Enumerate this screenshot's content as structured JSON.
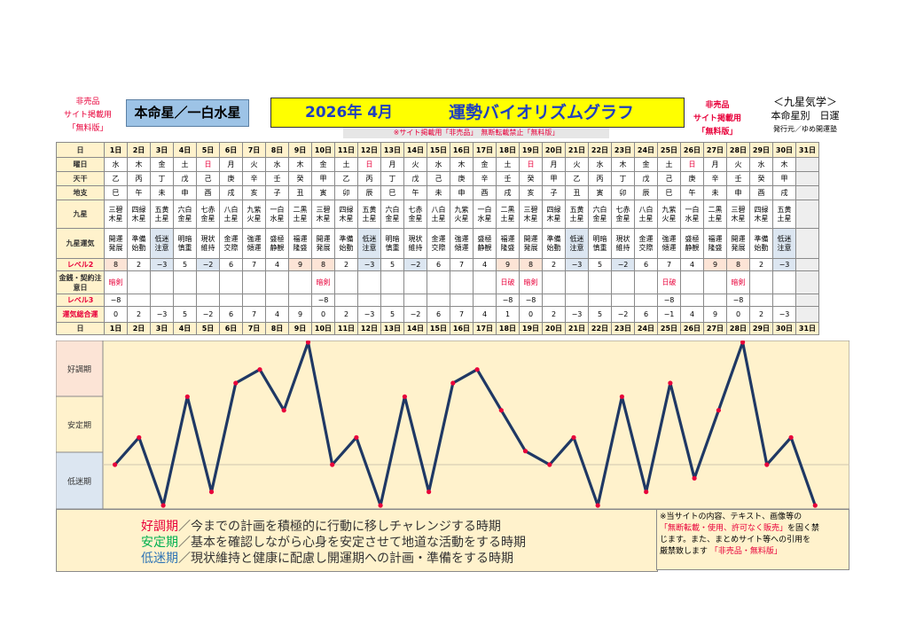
{
  "header": {
    "left_note": [
      "非売品",
      "サイト掲載用",
      "「無料版」"
    ],
    "honmei_label": "本命星／一白水星",
    "title_date": "2026年 4月",
    "title_main": "運勢バイオリズムグラフ",
    "right_note": [
      "非売品",
      "サイト掲載用",
      "「無料版」"
    ],
    "right_info": [
      "＜九星気学＞",
      "本命星別　日運",
      "発行元／ゆめ開運塾"
    ],
    "warning": "※サイト掲載用「非売品」　無断転載禁止「無料版」"
  },
  "row_labels": {
    "day": "日",
    "weekday": "曜日",
    "stem": "天干",
    "branch": "地支",
    "star": "九星",
    "fortune": "九星運気",
    "level2": "レベル2",
    "money": "金銭・契約注意日",
    "level3": "レベル3",
    "total": "運気総合運"
  },
  "days": [
    "1日",
    "2日",
    "3日",
    "4日",
    "5日",
    "6日",
    "7日",
    "8日",
    "9日",
    "10日",
    "11日",
    "12日",
    "13日",
    "14日",
    "15日",
    "16日",
    "17日",
    "18日",
    "19日",
    "20日",
    "21日",
    "22日",
    "23日",
    "24日",
    "25日",
    "26日",
    "27日",
    "28日",
    "29日",
    "30日",
    "31日"
  ],
  "weekdays": [
    "水",
    "木",
    "金",
    "土",
    "日",
    "月",
    "火",
    "水",
    "木",
    "金",
    "土",
    "日",
    "月",
    "火",
    "水",
    "木",
    "金",
    "土",
    "日",
    "月",
    "火",
    "水",
    "木",
    "金",
    "土",
    "日",
    "月",
    "火",
    "水",
    "木",
    ""
  ],
  "stems": [
    "乙",
    "丙",
    "丁",
    "戊",
    "己",
    "庚",
    "辛",
    "壬",
    "癸",
    "甲",
    "乙",
    "丙",
    "丁",
    "戊",
    "己",
    "庚",
    "辛",
    "壬",
    "癸",
    "甲",
    "乙",
    "丙",
    "丁",
    "戊",
    "己",
    "庚",
    "辛",
    "壬",
    "癸",
    "甲",
    ""
  ],
  "branches": [
    "巳",
    "午",
    "未",
    "申",
    "酉",
    "戌",
    "亥",
    "子",
    "丑",
    "寅",
    "卯",
    "辰",
    "巳",
    "午",
    "未",
    "申",
    "酉",
    "戌",
    "亥",
    "子",
    "丑",
    "寅",
    "卯",
    "辰",
    "巳",
    "午",
    "未",
    "申",
    "酉",
    "戌",
    ""
  ],
  "stars": [
    [
      "三碧",
      "木星"
    ],
    [
      "四緑",
      "木星"
    ],
    [
      "五黄",
      "土星"
    ],
    [
      "六白",
      "金星"
    ],
    [
      "七赤",
      "金星"
    ],
    [
      "八白",
      "土星"
    ],
    [
      "九紫",
      "火星"
    ],
    [
      "一白",
      "水星"
    ],
    [
      "二黒",
      "土星"
    ],
    [
      "三碧",
      "木星"
    ],
    [
      "四緑",
      "木星"
    ],
    [
      "五黄",
      "土星"
    ],
    [
      "六白",
      "金星"
    ],
    [
      "七赤",
      "金星"
    ],
    [
      "八白",
      "土星"
    ],
    [
      "九紫",
      "火星"
    ],
    [
      "一白",
      "水星"
    ],
    [
      "二黒",
      "土星"
    ],
    [
      "三碧",
      "木星"
    ],
    [
      "四緑",
      "木星"
    ],
    [
      "五黄",
      "土星"
    ],
    [
      "六白",
      "金星"
    ],
    [
      "七赤",
      "金星"
    ],
    [
      "八白",
      "土星"
    ],
    [
      "九紫",
      "火星"
    ],
    [
      "一白",
      "水星"
    ],
    [
      "二黒",
      "土星"
    ],
    [
      "三碧",
      "木星"
    ],
    [
      "四緑",
      "木星"
    ],
    [
      "五黄",
      "土星"
    ],
    [
      "",
      ""
    ]
  ],
  "fortunes": [
    [
      "開運",
      "発展"
    ],
    [
      "準備",
      "始動"
    ],
    [
      "低迷",
      "注意"
    ],
    [
      "明暗",
      "慎重"
    ],
    [
      "現状",
      "維持"
    ],
    [
      "金運",
      "交際"
    ],
    [
      "強運",
      "傾運"
    ],
    [
      "盛極",
      "静観"
    ],
    [
      "福運",
      "隆盛"
    ],
    [
      "開運",
      "発展"
    ],
    [
      "準備",
      "始動"
    ],
    [
      "低迷",
      "注意"
    ],
    [
      "明暗",
      "慎重"
    ],
    [
      "現状",
      "維持"
    ],
    [
      "金運",
      "交際"
    ],
    [
      "強運",
      "傾運"
    ],
    [
      "盛極",
      "静観"
    ],
    [
      "福運",
      "隆盛"
    ],
    [
      "開運",
      "発展"
    ],
    [
      "準備",
      "始動"
    ],
    [
      "低迷",
      "注意"
    ],
    [
      "明暗",
      "慎重"
    ],
    [
      "現状",
      "維持"
    ],
    [
      "金運",
      "交際"
    ],
    [
      "強運",
      "傾運"
    ],
    [
      "盛極",
      "静観"
    ],
    [
      "福運",
      "隆盛"
    ],
    [
      "開運",
      "発展"
    ],
    [
      "準備",
      "始動"
    ],
    [
      "低迷",
      "注意"
    ],
    [
      "",
      ""
    ]
  ],
  "level2": [
    "8",
    "2",
    "−3",
    "5",
    "−2",
    "6",
    "7",
    "4",
    "9",
    "8",
    "2",
    "−3",
    "5",
    "−2",
    "6",
    "7",
    "4",
    "9",
    "8",
    "2",
    "−3",
    "5",
    "−2",
    "6",
    "7",
    "4",
    "9",
    "8",
    "2",
    "−3",
    ""
  ],
  "money": [
    "暗剣",
    "",
    "",
    "",
    "",
    "",
    "",
    "",
    "",
    "暗剣",
    "",
    "",
    "",
    "",
    "",
    "",
    "",
    "日破",
    "暗剣",
    "",
    "",
    "",
    "",
    "",
    "日破",
    "",
    "",
    "暗剣",
    "",
    "",
    ""
  ],
  "level3": [
    "−8",
    "",
    "",
    "",
    "",
    "",
    "",
    "",
    "",
    "−8",
    "",
    "",
    "",
    "",
    "",
    "",
    "",
    "−8",
    "−8",
    "",
    "",
    "",
    "",
    "",
    "−8",
    "",
    "",
    "−8",
    "",
    "",
    ""
  ],
  "total": [
    "0",
    "2",
    "−3",
    "5",
    "−2",
    "6",
    "7",
    "4",
    "9",
    "0",
    "2",
    "−3",
    "5",
    "−2",
    "6",
    "7",
    "4",
    "1",
    "0",
    "2",
    "−3",
    "5",
    "−2",
    "6",
    "−1",
    "4",
    "9",
    "0",
    "2",
    "−3",
    ""
  ],
  "chart_data": {
    "type": "line",
    "categories": [
      "1日",
      "2日",
      "3日",
      "4日",
      "5日",
      "6日",
      "7日",
      "8日",
      "9日",
      "10日",
      "11日",
      "12日",
      "13日",
      "14日",
      "15日",
      "16日",
      "17日",
      "18日",
      "19日",
      "20日",
      "21日",
      "22日",
      "23日",
      "24日",
      "25日",
      "26日",
      "27日",
      "28日",
      "29日",
      "30日"
    ],
    "series": [
      {
        "values": [
          0,
          2,
          -3,
          5,
          -2,
          6,
          7,
          4,
          9,
          0,
          2,
          -3,
          5,
          -2,
          6,
          7,
          4,
          1,
          0,
          2,
          -3,
          5,
          -2,
          6,
          -1,
          4,
          9,
          0,
          2,
          -3
        ]
      }
    ],
    "ylim": [
      -3,
      9
    ],
    "bands": [
      {
        "label": "好調期",
        "color": "#fce4d6"
      },
      {
        "label": "安定期",
        "color": "#fff2cc"
      },
      {
        "label": "低迷期",
        "color": "#dce6f1"
      }
    ],
    "line_color": "#1f3864",
    "marker_color": "#e8003a"
  },
  "legend": {
    "good_term": "好調期",
    "good_text": "／今までの計画を積極的に行動に移しチャレンジする時期",
    "stable_term": "安定期",
    "stable_text": "／基本を確認しながら心身を安定させて地道な活動をする時期",
    "low_term": "低迷期",
    "low_text": "／現状維持と健康に配慮し開運期への計画・準備をする時期",
    "good_color": "#e8003a",
    "stable_color": "#00b050",
    "low_color": "#2f75b5"
  },
  "notice": {
    "line1": "※当サイトの内容、テキスト、画像等の",
    "line2_red": "「無断転載・使用、許可なく販売」",
    "line2_tail": "を固く禁",
    "line3": "じます。また、まとめサイト等への引用を",
    "line4": "厳禁致します ",
    "line4_red": "「非売品・無料版」"
  }
}
